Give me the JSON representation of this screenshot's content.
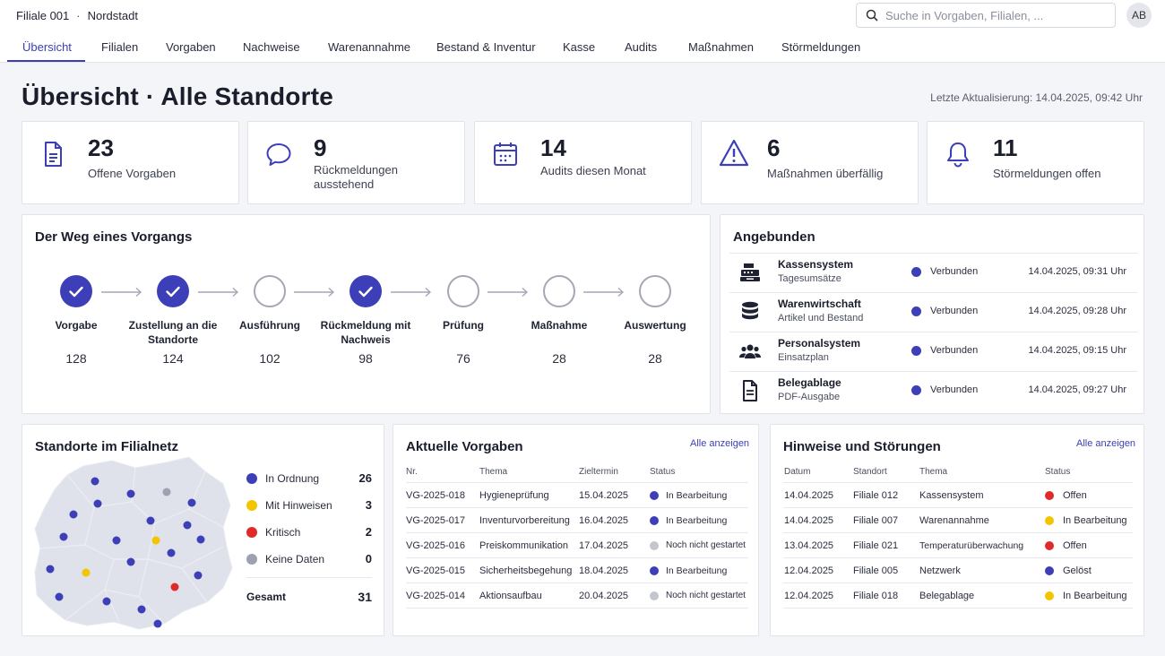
{
  "header": {
    "branch_id": "Filiale 001",
    "separator": "·",
    "branch_name": "Nordstadt",
    "search_placeholder": "Suche in Vorgaben, Filialen, ...",
    "avatar_initials": "AB"
  },
  "nav": {
    "tabs": [
      "Übersicht",
      "Filialen",
      "Vorgaben",
      "Nachweise",
      "Warenannahme",
      "Bestand & Inventur",
      "Kasse",
      "Audits",
      "Maßnahmen",
      "Störmeldungen"
    ],
    "active": "Übersicht"
  },
  "page": {
    "title": "Übersicht · Alle Standorte",
    "last_update": "Letzte Aktualisierung: 14.04.2025, 09:42 Uhr"
  },
  "kpis": [
    {
      "value": "23",
      "label": "Offene Vorgaben",
      "icon": "document-icon"
    },
    {
      "value": "9",
      "label": "Rückmeldungen ausstehend",
      "icon": "chat-bubble-icon"
    },
    {
      "value": "14",
      "label": "Audits diesen Monat",
      "icon": "calendar-icon"
    },
    {
      "value": "6",
      "label": "Maßnahmen überfällig",
      "icon": "warning-icon"
    },
    {
      "value": "11",
      "label": "Störmeldungen offen",
      "icon": "bell-icon"
    }
  ],
  "process": {
    "title": "Der Weg eines Vorgangs",
    "steps": [
      {
        "label": "Vorgabe",
        "count": "128",
        "done": true
      },
      {
        "label": "Zustellung an die Standorte",
        "count": "124",
        "done": true
      },
      {
        "label": "Ausführung",
        "count": "102",
        "done": false
      },
      {
        "label": "Rückmeldung mit Nachweis",
        "count": "98",
        "done": true
      },
      {
        "label": "Prüfung",
        "count": "76",
        "done": false
      },
      {
        "label": "Maßnahme",
        "count": "28",
        "done": false
      },
      {
        "label": "Auswertung",
        "count": "28",
        "done": false
      }
    ]
  },
  "connected": {
    "title": "Angebunden",
    "items": [
      {
        "name": "Kassensystem",
        "sub": "Tagesumsätze",
        "status": "Verbunden",
        "time": "14.04.2025, 09:31 Uhr",
        "icon": "cash-register-icon"
      },
      {
        "name": "Warenwirtschaft",
        "sub": "Artikel und Bestand",
        "status": "Verbunden",
        "time": "14.04.2025, 09:28 Uhr",
        "icon": "database-icon"
      },
      {
        "name": "Personalsystem",
        "sub": "Einsatzplan",
        "status": "Verbunden",
        "time": "14.04.2025, 09:15 Uhr",
        "icon": "people-icon"
      },
      {
        "name": "Belegablage",
        "sub": "PDF-Ausgabe",
        "status": "Verbunden",
        "time": "14.04.2025, 09:27 Uhr",
        "icon": "file-icon"
      }
    ]
  },
  "locations": {
    "title": "Standorte im Filialnetz",
    "legend": [
      {
        "label": "In Ordnung",
        "value": "26",
        "color": "#3d3fb8"
      },
      {
        "label": "Mit Hinweisen",
        "value": "3",
        "color": "#f2c500"
      },
      {
        "label": "Kritisch",
        "value": "2",
        "color": "#e02a2a"
      },
      {
        "label": "Keine Daten",
        "value": "0",
        "color": "#9ea2b0"
      }
    ],
    "total_label": "Gesamt",
    "total_value": "31"
  },
  "directives": {
    "title": "Aktuelle Vorgaben",
    "link": "Alle anzeigen",
    "columns": [
      "Nr.",
      "Thema",
      "Zieltermin",
      "Status"
    ],
    "rows": [
      {
        "nr": "VG-2025-018",
        "topic": "Hygieneprüfung",
        "date": "15.04.2025",
        "status": "In Bearbeitung",
        "color": "#3d3fb8"
      },
      {
        "nr": "VG-2025-017",
        "topic": "Inventurvorbereitung",
        "date": "16.04.2025",
        "status": "In Bearbeitung",
        "color": "#3d3fb8"
      },
      {
        "nr": "VG-2025-016",
        "topic": "Preiskommunikation",
        "date": "17.04.2025",
        "status": "Noch nicht gestartet",
        "color": "#c4c6ce"
      },
      {
        "nr": "VG-2025-015",
        "topic": "Sicherheitsbegehung",
        "date": "18.04.2025",
        "status": "In Bearbeitung",
        "color": "#3d3fb8"
      },
      {
        "nr": "VG-2025-014",
        "topic": "Aktionsaufbau",
        "date": "20.04.2025",
        "status": "Noch nicht gestartet",
        "color": "#c4c6ce"
      }
    ]
  },
  "issues": {
    "title": "Hinweise und Störungen",
    "link": "Alle anzeigen",
    "columns": [
      "Datum",
      "Standort",
      "Thema",
      "Status"
    ],
    "rows": [
      {
        "date": "14.04.2025",
        "site": "Filiale 012",
        "topic": "Kassensystem",
        "status": "Offen",
        "color": "#e02a2a"
      },
      {
        "date": "14.04.2025",
        "site": "Filiale 007",
        "topic": "Warenannahme",
        "status": "In Bearbeitung",
        "color": "#f2c500"
      },
      {
        "date": "13.04.2025",
        "site": "Filiale 021",
        "topic": "Temperaturüberwachung",
        "status": "Offen",
        "color": "#e02a2a"
      },
      {
        "date": "12.04.2025",
        "site": "Filiale 005",
        "topic": "Netzwerk",
        "status": "Gelöst",
        "color": "#3d3fb8"
      },
      {
        "date": "12.04.2025",
        "site": "Filiale 018",
        "topic": "Belegablage",
        "status": "In Bearbeitung",
        "color": "#f2c500"
      }
    ]
  }
}
